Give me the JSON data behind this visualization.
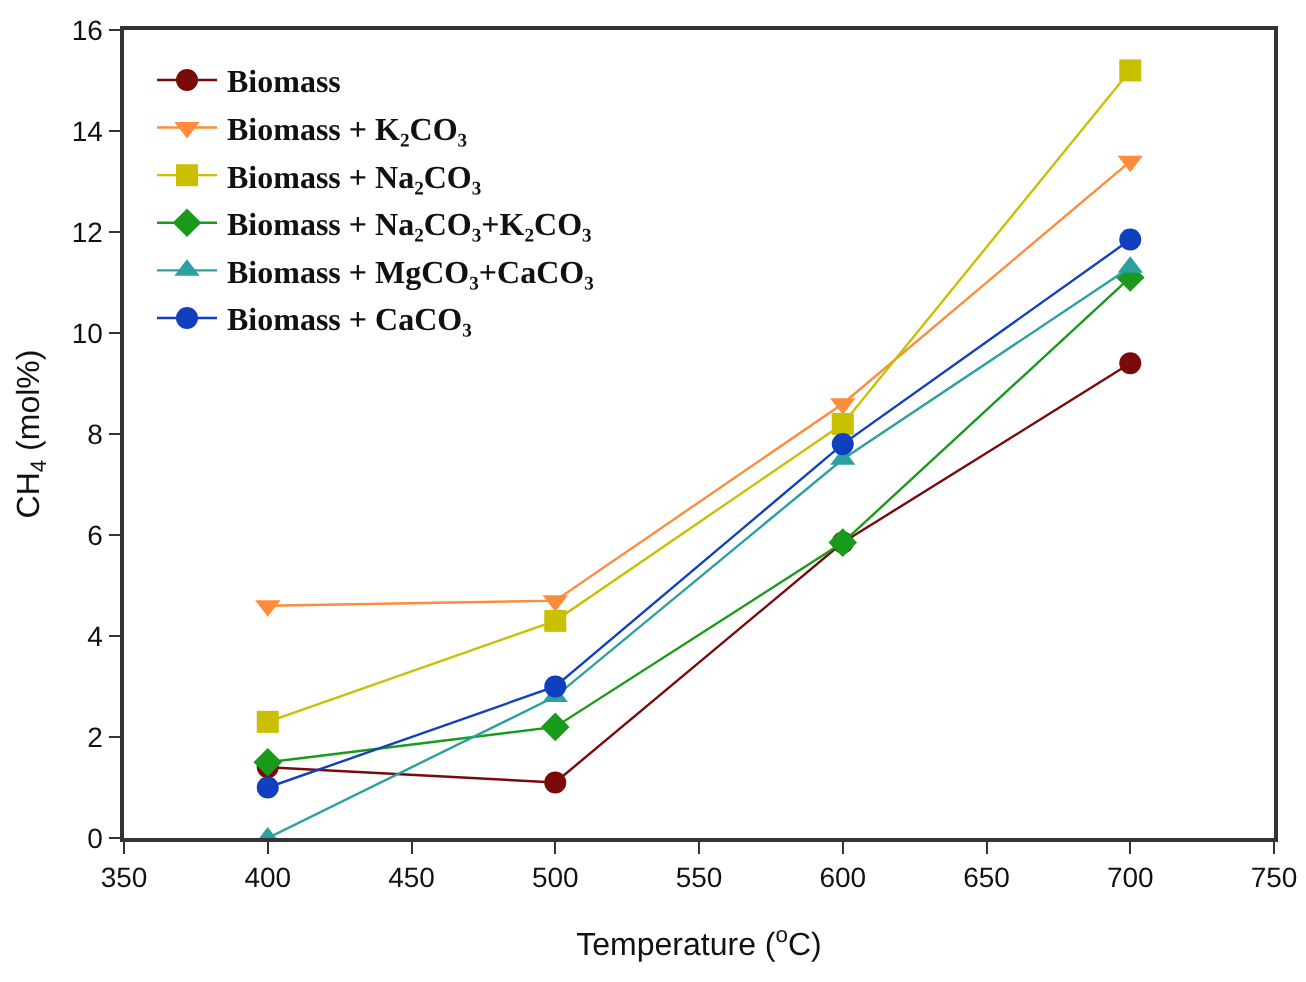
{
  "chart_data": {
    "type": "line",
    "xlabel": "Temperature ($^{o}$C)",
    "ylabel": "CH$_{4}$ (mol%)",
    "x": [
      400,
      500,
      600,
      700
    ],
    "series": [
      {
        "name": "Biomass",
        "color": "#7a0a0a",
        "marker": "circle",
        "values": [
          1.4,
          1.1,
          5.85,
          9.4
        ]
      },
      {
        "name": "Biomass + K₂CO₃",
        "color": "#ff8c3a",
        "marker": "triangle-down",
        "values": [
          4.6,
          4.7,
          8.6,
          13.4
        ]
      },
      {
        "name": "Biomass + Na₂CO₃",
        "color": "#c8c000",
        "marker": "square",
        "values": [
          2.3,
          4.3,
          8.2,
          15.2
        ]
      },
      {
        "name": "Biomass + Na₂CO₃+K₂CO₃",
        "color": "#1a9a1a",
        "marker": "diamond",
        "values": [
          1.5,
          2.2,
          5.85,
          11.1
        ]
      },
      {
        "name": "Biomass + MgCO₃+CaCO₃",
        "color": "#2aa0a0",
        "marker": "triangle",
        "values": [
          0.0,
          2.8,
          7.5,
          11.3
        ]
      },
      {
        "name": "Biomass + CaCO₃",
        "color": "#1040c0",
        "marker": "circle",
        "values": [
          1.0,
          3.0,
          7.8,
          11.85
        ]
      }
    ],
    "xlim": [
      350,
      750
    ],
    "xticks": [
      350,
      400,
      450,
      500,
      550,
      600,
      650,
      700,
      750
    ],
    "ylim": [
      0,
      16
    ],
    "yticks": [
      0,
      2,
      4,
      6,
      8,
      10,
      12,
      14,
      16
    ],
    "grid": false,
    "legend": "top left"
  }
}
